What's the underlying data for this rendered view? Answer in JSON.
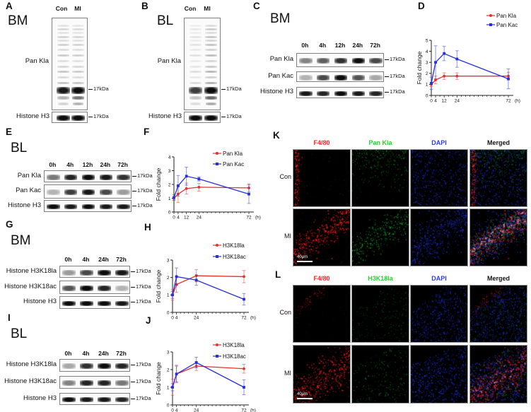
{
  "figure": {
    "panels": {
      "A": {
        "letter": "A",
        "tissue": "BM",
        "lane_labels": [
          "Con",
          "MI"
        ],
        "probe_label": "Pan Kla",
        "loading_label": "Histone H3",
        "marker_label": "17kDa"
      },
      "B": {
        "letter": "B",
        "tissue": "BL",
        "lane_labels": [
          "Con",
          "MI"
        ],
        "probe_label": "Pan Kla",
        "loading_label": "Histone H3",
        "marker_label": "17kDa"
      },
      "C": {
        "letter": "C",
        "tissue": "BM",
        "lane_labels": [
          "0h",
          "4h",
          "12h",
          "24h",
          "72h"
        ],
        "row_labels": [
          "Pan Kla",
          "Pan Kac",
          "Histone H3"
        ],
        "marker_label": "17kDa"
      },
      "D": {
        "letter": "D"
      },
      "E": {
        "letter": "E",
        "tissue": "BL",
        "lane_labels": [
          "0h",
          "4h",
          "12h",
          "24h",
          "72h"
        ],
        "row_labels": [
          "Pan Kla",
          "Pan Kac",
          "Histone H3"
        ],
        "marker_label": "17kDa"
      },
      "F": {
        "letter": "F"
      },
      "G": {
        "letter": "G",
        "tissue": "BM",
        "lane_labels": [
          "0h",
          "4h",
          "24h",
          "72h"
        ],
        "row_labels": [
          "Histone H3K18la",
          "Histone H3K18ac",
          "Histone H3"
        ],
        "marker_label": "17kDa"
      },
      "H": {
        "letter": "H"
      },
      "I": {
        "letter": "I",
        "tissue": "BL",
        "lane_labels": [
          "0h",
          "4h",
          "24h",
          "72h"
        ],
        "row_labels": [
          "Histone H3K18la",
          "Histone H3K18ac",
          "Histone H3"
        ],
        "marker_label": "17kDa"
      },
      "J": {
        "letter": "J"
      },
      "K": {
        "letter": "K",
        "row_labels": [
          "Con",
          "MI"
        ],
        "scale_bar_label": "40μm",
        "column_labels": [
          {
            "label": "F4/80",
            "color": "#ff2424"
          },
          {
            "label": "Pan Kla",
            "color": "#29d135"
          },
          {
            "label": "DAPI",
            "color": "#2b3cf0"
          },
          {
            "label": "Merged",
            "color": "#111111"
          }
        ]
      },
      "L": {
        "letter": "L",
        "row_labels": [
          "Con",
          "MI"
        ],
        "scale_bar_label": "40μm",
        "column_labels": [
          {
            "label": "F4/80",
            "color": "#ff2424"
          },
          {
            "label": "H3K18la",
            "color": "#29d135"
          },
          {
            "label": "DAPI",
            "color": "#2b3cf0"
          },
          {
            "label": "Merged",
            "color": "#111111"
          }
        ]
      }
    }
  },
  "chart_data": [
    {
      "id": "D",
      "type": "line",
      "x": [
        0,
        4,
        12,
        24,
        72
      ],
      "xticks": [
        0,
        4,
        12,
        24,
        72
      ],
      "x_unit_label": "(h)",
      "ylabel": "Fold change",
      "ylim": [
        0,
        5
      ],
      "yticks": [
        0,
        1,
        2,
        3,
        4,
        5
      ],
      "grid": false,
      "legend_position": "top-right",
      "series": [
        {
          "name": "Pan Kla",
          "color": "#e8312f",
          "marker": "circle",
          "values": [
            1.0,
            1.4,
            1.75,
            1.75,
            1.75
          ],
          "errors": [
            0.2,
            0.35,
            0.3,
            0.3,
            0.35
          ]
        },
        {
          "name": "Pan Kac",
          "color": "#2730d8",
          "marker": "square",
          "values": [
            1.1,
            3.0,
            3.8,
            3.3,
            1.5
          ],
          "errors": [
            0.55,
            1.5,
            0.65,
            0.75,
            0.9
          ]
        }
      ]
    },
    {
      "id": "F",
      "type": "line",
      "x": [
        0,
        4,
        12,
        24,
        72
      ],
      "xticks": [
        0,
        4,
        12,
        24,
        72
      ],
      "x_unit_label": "(h)",
      "ylabel": "Fold change",
      "ylim": [
        0,
        4
      ],
      "yticks": [
        0,
        1,
        2,
        3,
        4
      ],
      "grid": false,
      "legend_position": "top-right",
      "series": [
        {
          "name": "Pan Kla",
          "color": "#e8312f",
          "marker": "circle",
          "values": [
            1.0,
            1.3,
            1.7,
            1.8,
            1.75
          ],
          "errors": [
            0.12,
            0.6,
            0.4,
            0.28,
            0.3
          ]
        },
        {
          "name": "Pan Kac",
          "color": "#2730d8",
          "marker": "square",
          "values": [
            1.05,
            1.9,
            2.6,
            2.4,
            1.3
          ],
          "errors": [
            0.2,
            0.75,
            0.65,
            0.15,
            0.68
          ]
        }
      ]
    },
    {
      "id": "H",
      "type": "line",
      "x": [
        0,
        4,
        24,
        72
      ],
      "xticks": [
        0,
        4,
        24,
        72
      ],
      "x_unit_label": "(h)",
      "ylabel": "Fold change",
      "ylim": [
        0,
        3
      ],
      "yticks": [
        0,
        1,
        2,
        3
      ],
      "grid": false,
      "legend_position": "top-right",
      "series": [
        {
          "name": "H3K18la",
          "color": "#e8312f",
          "marker": "circle",
          "values": [
            1.0,
            1.6,
            2.1,
            2.05
          ],
          "errors": [
            0.3,
            0.45,
            0.35,
            0.35
          ]
        },
        {
          "name": "H3K18ac",
          "color": "#2730d8",
          "marker": "square",
          "values": [
            1.0,
            2.05,
            1.85,
            0.75
          ],
          "errors": [
            0.2,
            0.5,
            0.3,
            0.33
          ]
        }
      ]
    },
    {
      "id": "J",
      "type": "line",
      "x": [
        0,
        4,
        24,
        72
      ],
      "xticks": [
        0,
        4,
        24,
        72
      ],
      "x_unit_label": "(h)",
      "ylabel": "Fold change",
      "ylim": [
        0,
        3
      ],
      "yticks": [
        0,
        1,
        2,
        3
      ],
      "grid": false,
      "legend_position": "top-right",
      "series": [
        {
          "name": "H3K18la",
          "color": "#e8312f",
          "marker": "circle",
          "values": [
            1.0,
            1.75,
            2.2,
            2.05
          ],
          "errors": [
            0.45,
            0.5,
            0.25,
            0.25
          ]
        },
        {
          "name": "H3K18ac",
          "color": "#2730d8",
          "marker": "square",
          "values": [
            1.0,
            1.75,
            2.4,
            1.0
          ],
          "errors": [
            0.2,
            0.45,
            0.3,
            0.42
          ]
        }
      ]
    }
  ]
}
